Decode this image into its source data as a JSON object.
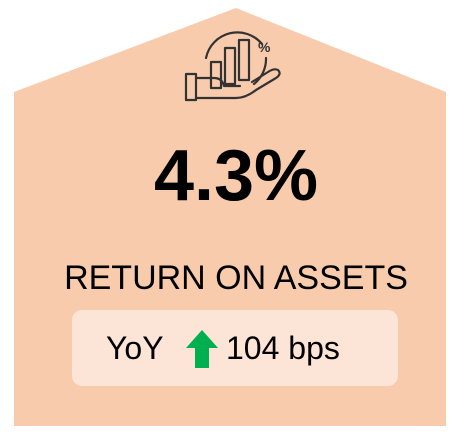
{
  "card": {
    "value": "4.3%",
    "label": "RETURN ON ASSETS",
    "change_prefix": "YoY",
    "change": "104 bps"
  }
}
